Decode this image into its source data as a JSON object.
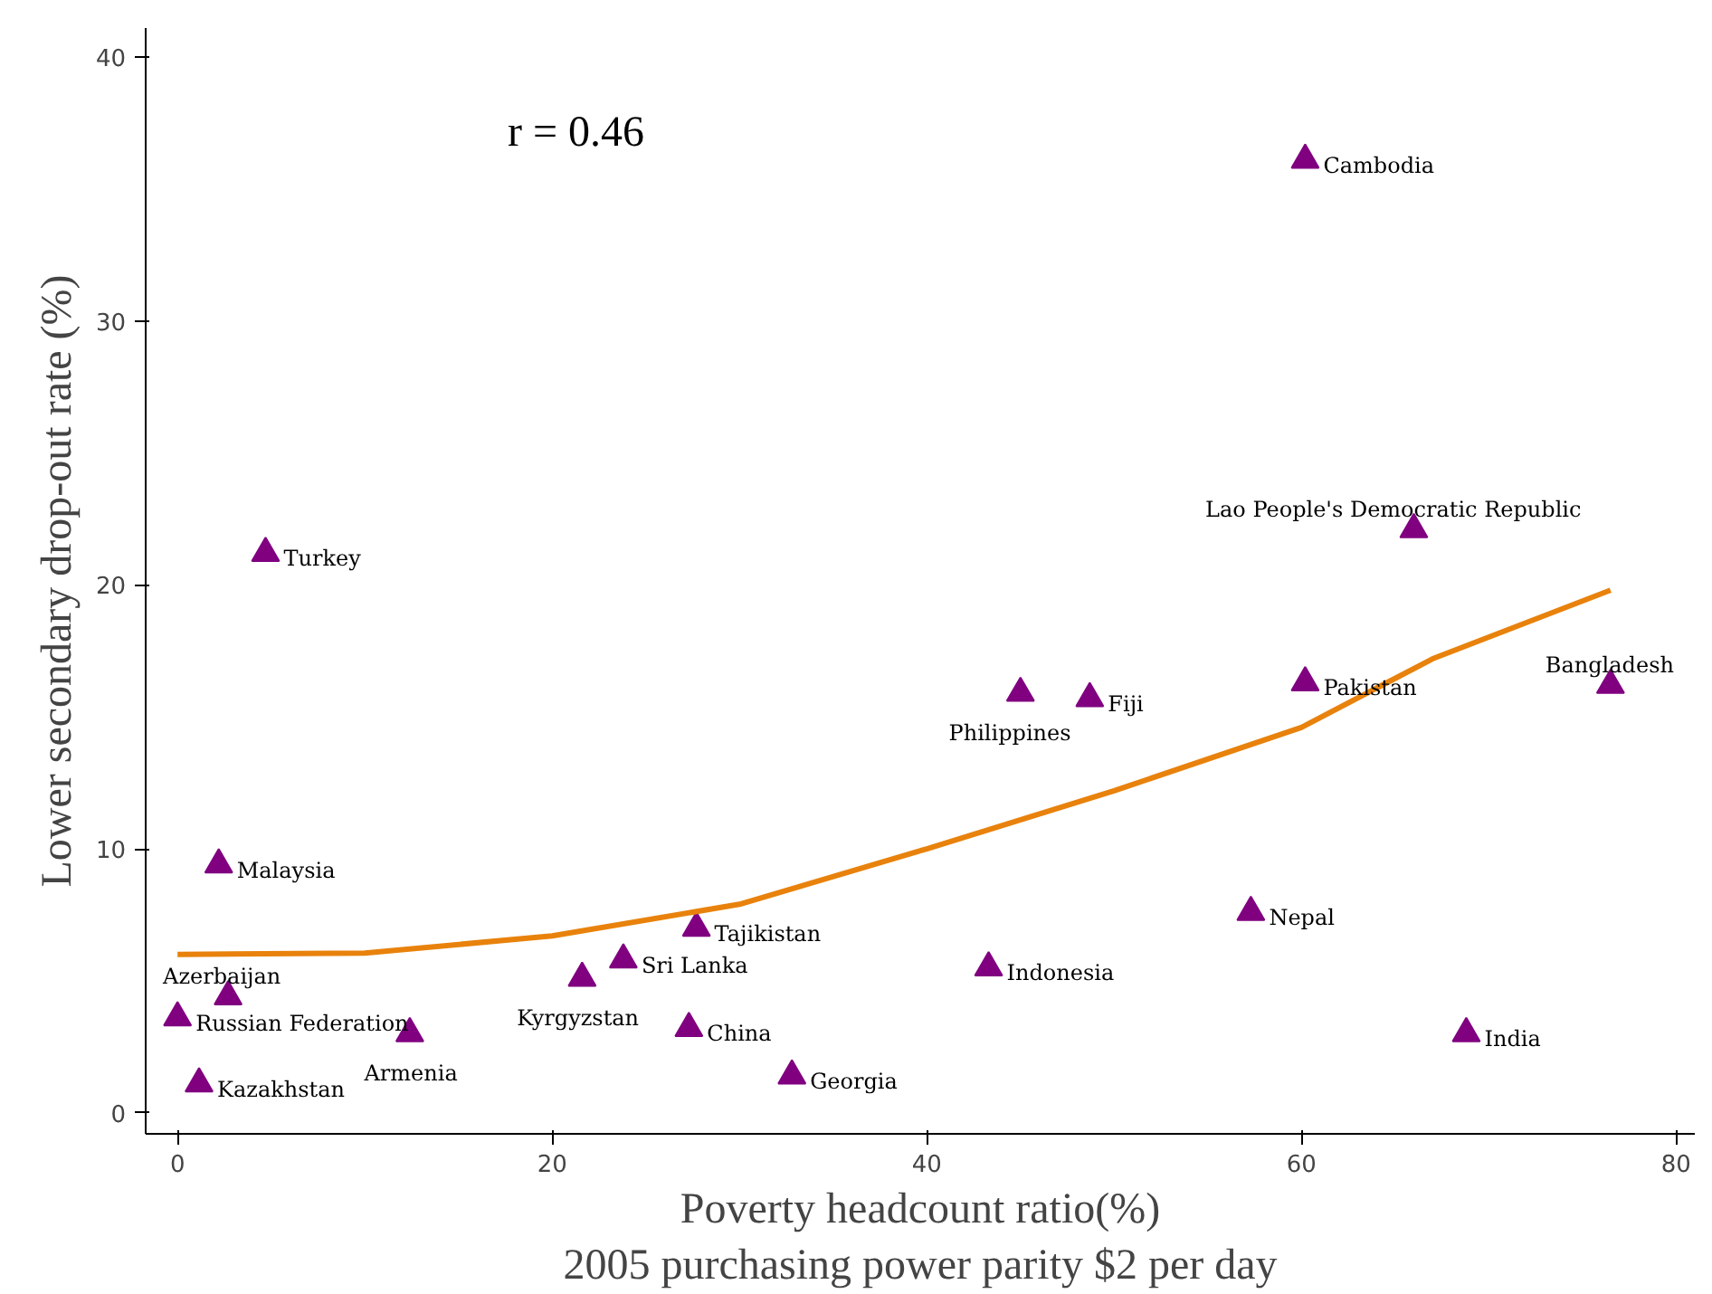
{
  "chart_data": {
    "type": "scatter",
    "xlabel": "Poverty headcount ratio(%)\n2005 purchasing power parity $2 per day",
    "ylabel": "Lower secondary drop-out rate (%)",
    "xlim": [
      -1.7,
      81
    ],
    "ylim": [
      -0.8,
      41.1
    ],
    "xticks": [
      0,
      20,
      40,
      60,
      80
    ],
    "yticks": [
      0,
      10,
      20,
      30,
      40
    ],
    "grid": false,
    "series": [
      {
        "marker": "triangle",
        "color": "#800080",
        "x": [
          0,
          1.15,
          2.7,
          2.2,
          4.7,
          12.4,
          21.6,
          23.8,
          27.3,
          27.7,
          32.8,
          43.3,
          45.0,
          48.7,
          57.3,
          60.2,
          60.2,
          66.0,
          68.8,
          76.5
        ],
        "values": [
          3.6,
          1.1,
          4.4,
          9.4,
          21.2,
          3.0,
          5.1,
          5.8,
          3.2,
          7.0,
          1.4,
          5.5,
          15.9,
          15.7,
          7.6,
          36.1,
          16.3,
          22.1,
          3.0,
          16.2
        ]
      },
      {
        "type": "line",
        "color": "#e8820c",
        "x": [
          0,
          10,
          20,
          30,
          40,
          50,
          60,
          67,
          76.5
        ],
        "values": [
          6.0,
          6.05,
          6.7,
          7.9,
          10.0,
          12.2,
          14.6,
          17.2,
          19.8
        ]
      }
    ],
    "annotations": [
      {
        "text": "Russian Federation",
        "x": 0,
        "y": 3.6
      },
      {
        "text": "Kazakhstan",
        "x": 1.15,
        "y": 1.1
      },
      {
        "text": "Azerbaijan",
        "x": 2.7,
        "y": 4.4
      },
      {
        "text": "Malaysia",
        "x": 2.2,
        "y": 9.4
      },
      {
        "text": "Turkey",
        "x": 4.7,
        "y": 21.2
      },
      {
        "text": "Armenia",
        "x": 12.4,
        "y": 3.0
      },
      {
        "text": "Kyrgyzstan",
        "x": 21.6,
        "y": 5.1
      },
      {
        "text": "Sri Lanka",
        "x": 23.8,
        "y": 5.8
      },
      {
        "text": "China",
        "x": 27.3,
        "y": 3.2
      },
      {
        "text": "Tajikistan",
        "x": 27.7,
        "y": 7.0
      },
      {
        "text": "Georgia",
        "x": 32.8,
        "y": 1.4
      },
      {
        "text": "Indonesia",
        "x": 43.3,
        "y": 5.5
      },
      {
        "text": "Philippines",
        "x": 45.0,
        "y": 15.9
      },
      {
        "text": "Fiji",
        "x": 48.7,
        "y": 15.7
      },
      {
        "text": "Nepal",
        "x": 57.3,
        "y": 7.6
      },
      {
        "text": "Cambodia",
        "x": 60.2,
        "y": 36.1
      },
      {
        "text": "Pakistan",
        "x": 60.2,
        "y": 16.3
      },
      {
        "text": "Lao People's Democratic Republic",
        "x": 66.0,
        "y": 22.1
      },
      {
        "text": "India",
        "x": 68.8,
        "y": 3.0
      },
      {
        "text": "Bangladesh",
        "x": 76.5,
        "y": 16.2
      },
      "r = 0.46"
    ]
  }
}
